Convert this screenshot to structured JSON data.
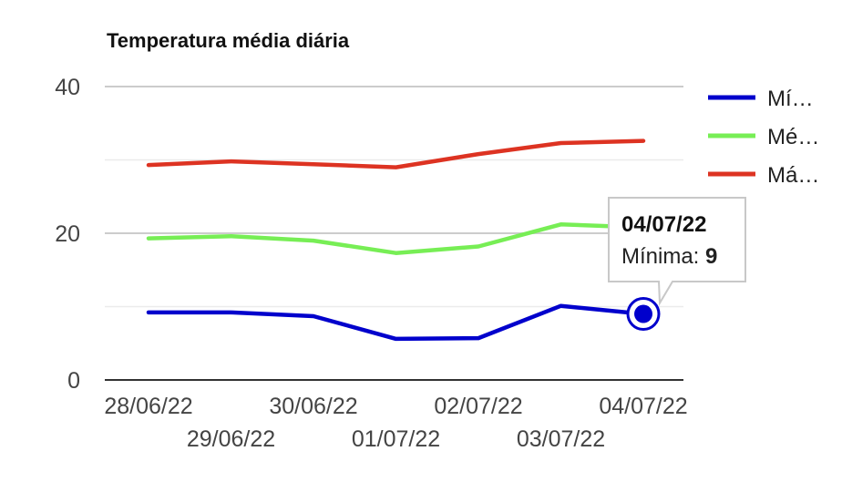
{
  "chart_data": {
    "type": "line",
    "title": "Temperatura média diária",
    "categories": [
      "28/06/22",
      "29/06/22",
      "30/06/22",
      "01/07/22",
      "02/07/22",
      "03/07/22",
      "04/07/22"
    ],
    "ylim": [
      0,
      40
    ],
    "yticks": [
      0,
      20,
      40
    ],
    "grid": true,
    "legend_position": "right",
    "series": [
      {
        "name": "Mí…",
        "color": "#0000cc",
        "values": [
          9.2,
          9.2,
          8.7,
          5.6,
          5.7,
          10.1,
          9
        ]
      },
      {
        "name": "Mé…",
        "color": "#77ee55",
        "values": [
          19.3,
          19.6,
          19.0,
          17.3,
          18.2,
          21.2,
          20.8
        ]
      },
      {
        "name": "Má…",
        "color": "#dd3322",
        "values": [
          29.3,
          29.8,
          29.4,
          29.0,
          30.8,
          32.3,
          32.6
        ]
      }
    ],
    "tooltip": {
      "date": "04/07/22",
      "label": "Mínima:",
      "value": "9",
      "series_index": 0,
      "point_index": 6
    }
  }
}
